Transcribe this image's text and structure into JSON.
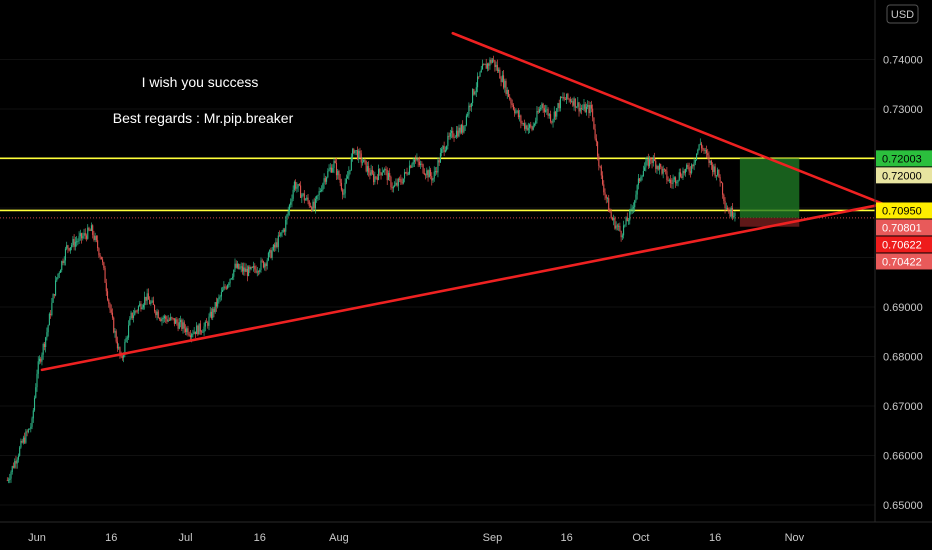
{
  "chart_data": {
    "type": "candlestick",
    "currency_label": "USD",
    "annotations": [
      "I wish you success",
      "Best regards : Mr.pip.breaker"
    ],
    "y_ticks": [
      0.65,
      0.66,
      0.67,
      0.68,
      0.69,
      0.7,
      0.71,
      0.72,
      0.73,
      0.74
    ],
    "y_tick_labels": [
      "0.65000",
      "0.66000",
      "0.67000",
      "0.68000",
      "0.69000",
      "0.70000",
      "0.71000",
      "0.72000",
      "0.73000",
      "0.74000"
    ],
    "x_tick_labels": [
      "Jun",
      "16",
      "Jul",
      "16",
      "Aug",
      "Sep",
      "16",
      "Oct",
      "16",
      "Nov"
    ],
    "x_tick_days": [
      0,
      15,
      30,
      45,
      61,
      92,
      107,
      122,
      137,
      153
    ],
    "ylim": [
      0.6455,
      0.7505
    ],
    "horizontal_levels": [
      0.72003,
      0.7095
    ],
    "dotted_level": 0.70801,
    "price_tags": [
      {
        "label": "0.72003",
        "value": 0.72003,
        "bg": "#2bbf3d",
        "fg": "#000000"
      },
      {
        "label": "0.72000",
        "value": 0.72,
        "bg": "#e8e4a0",
        "fg": "#000000"
      },
      {
        "label": "0.70950",
        "value": 0.7095,
        "bg": "#ffee00",
        "fg": "#000000"
      },
      {
        "label": "0.70801",
        "value": 0.70801,
        "bg": "#e85a5a",
        "fg": "#ffffff"
      },
      {
        "label": "0.70622",
        "value": 0.70622,
        "bg": "#ee1c1c",
        "fg": "#ffffff"
      },
      {
        "label": "0.70422",
        "value": 0.70422,
        "bg": "#e85a5a",
        "fg": "#ffffff"
      }
    ],
    "triangle_lines": [
      {
        "from": [
          1,
          0.6773
        ],
        "to": [
          171,
          0.7108
        ]
      },
      {
        "from": [
          84,
          0.7453
        ],
        "to": [
          171,
          0.7108
        ]
      }
    ],
    "position_box": {
      "x_start_day": 142,
      "x_end_day": 154,
      "entry": 0.70801,
      "target": 0.72003,
      "stop": 0.70622
    },
    "price_path": [
      [
        -6,
        0.655
      ],
      [
        -3,
        0.6625
      ],
      [
        -1,
        0.6665
      ],
      [
        0,
        0.677
      ],
      [
        2,
        0.685
      ],
      [
        4,
        0.696
      ],
      [
        6,
        0.702
      ],
      [
        9,
        0.704
      ],
      [
        11,
        0.7055
      ],
      [
        13,
        0.7
      ],
      [
        15,
        0.688
      ],
      [
        17,
        0.679
      ],
      [
        19,
        0.688
      ],
      [
        22,
        0.692
      ],
      [
        25,
        0.688
      ],
      [
        28,
        0.687
      ],
      [
        31,
        0.685
      ],
      [
        34,
        0.686
      ],
      [
        37,
        0.692
      ],
      [
        40,
        0.698
      ],
      [
        43,
        0.697
      ],
      [
        46,
        0.699
      ],
      [
        48,
        0.702
      ],
      [
        50,
        0.706
      ],
      [
        52,
        0.715
      ],
      [
        54,
        0.712
      ],
      [
        56,
        0.71
      ],
      [
        58,
        0.716
      ],
      [
        60,
        0.719
      ],
      [
        62,
        0.713
      ],
      [
        64,
        0.722
      ],
      [
        66,
        0.719
      ],
      [
        68,
        0.716
      ],
      [
        70,
        0.718
      ],
      [
        72,
        0.714
      ],
      [
        74,
        0.716
      ],
      [
        76,
        0.72
      ],
      [
        78,
        0.718
      ],
      [
        80,
        0.716
      ],
      [
        82,
        0.722
      ],
      [
        84,
        0.725
      ],
      [
        86,
        0.726
      ],
      [
        88,
        0.733
      ],
      [
        90,
        0.738
      ],
      [
        92,
        0.74
      ],
      [
        94,
        0.736
      ],
      [
        96,
        0.731
      ],
      [
        98,
        0.727
      ],
      [
        100,
        0.726
      ],
      [
        102,
        0.731
      ],
      [
        104,
        0.728
      ],
      [
        106,
        0.732
      ],
      [
        108,
        0.732
      ],
      [
        110,
        0.73
      ],
      [
        112,
        0.73
      ],
      [
        114,
        0.716
      ],
      [
        116,
        0.708
      ],
      [
        118,
        0.705
      ],
      [
        120,
        0.709
      ],
      [
        122,
        0.717
      ],
      [
        124,
        0.72
      ],
      [
        126,
        0.718
      ],
      [
        128,
        0.715
      ],
      [
        130,
        0.717
      ],
      [
        132,
        0.718
      ],
      [
        134,
        0.723
      ],
      [
        136,
        0.719
      ],
      [
        138,
        0.716
      ],
      [
        139,
        0.711
      ],
      [
        140,
        0.709
      ],
      [
        141,
        0.7095
      ]
    ]
  }
}
